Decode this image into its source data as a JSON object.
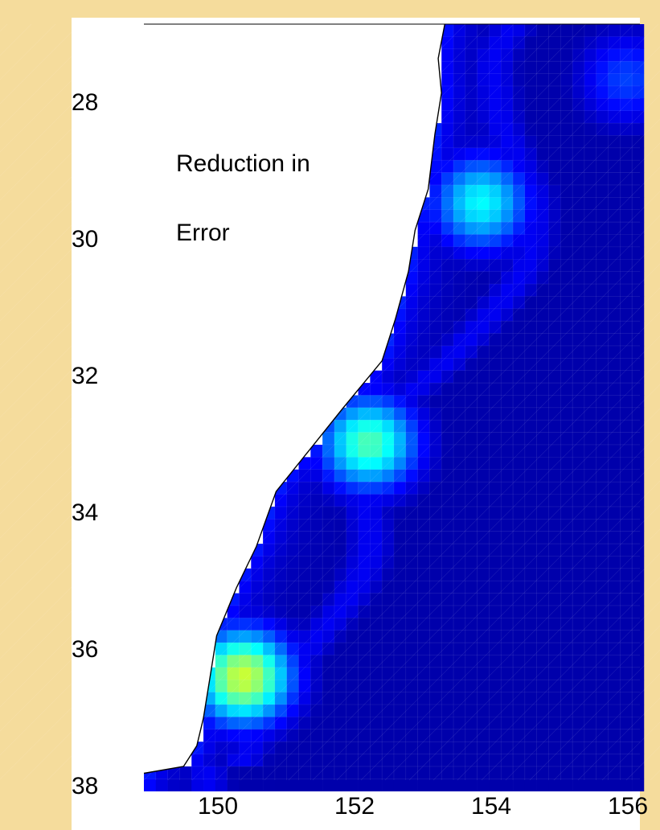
{
  "map": {
    "label_line1": "Reduction in",
    "label_line2": "Error",
    "colormap": [
      "#00008f",
      "#0000ff",
      "#0080ff",
      "#00ffff",
      "#80ff80",
      "#ffff00"
    ],
    "land_color": "#ffffff",
    "coast_color": "#000000",
    "page_background": "#f5dc9c"
  },
  "axes": {
    "lat_ticks": [
      "28",
      "30",
      "32",
      "34",
      "36",
      "38"
    ],
    "lon_ticks": [
      "150",
      "152",
      "154",
      "156"
    ]
  },
  "chart_data": {
    "type": "heatmap",
    "xlim": [
      149,
      156.5
    ],
    "ylim": [
      27,
      38
    ],
    "x_ticks": [
      150,
      152,
      154,
      156
    ],
    "y_ticks": [
      28,
      30,
      32,
      34,
      36,
      38
    ],
    "y_reversed": true,
    "title": "",
    "xlabel": "",
    "ylabel": "",
    "legend": "Reduction in Error",
    "grid": true,
    "hotspots": [
      {
        "lon": 154.1,
        "lat": 29.6,
        "level": 0.6
      },
      {
        "lon": 152.4,
        "lat": 33.1,
        "level": 0.72
      },
      {
        "lon": 150.5,
        "lat": 36.5,
        "level": 0.92
      },
      {
        "lon": 156.3,
        "lat": 27.8,
        "level": 0.3
      }
    ],
    "coastline": [
      [
        153.55,
        27.0
      ],
      [
        153.45,
        27.5
      ],
      [
        153.5,
        28.0
      ],
      [
        153.4,
        28.6
      ],
      [
        153.3,
        29.4
      ],
      [
        153.1,
        30.0
      ],
      [
        153.0,
        30.6
      ],
      [
        152.8,
        31.3
      ],
      [
        152.6,
        31.9
      ],
      [
        152.0,
        32.6
      ],
      [
        151.5,
        33.2
      ],
      [
        151.0,
        33.8
      ],
      [
        150.7,
        34.6
      ],
      [
        150.4,
        35.2
      ],
      [
        150.1,
        35.9
      ],
      [
        150.0,
        36.5
      ],
      [
        149.9,
        37.1
      ],
      [
        149.8,
        37.5
      ],
      [
        149.6,
        37.8
      ],
      [
        149.0,
        37.9
      ]
    ]
  }
}
